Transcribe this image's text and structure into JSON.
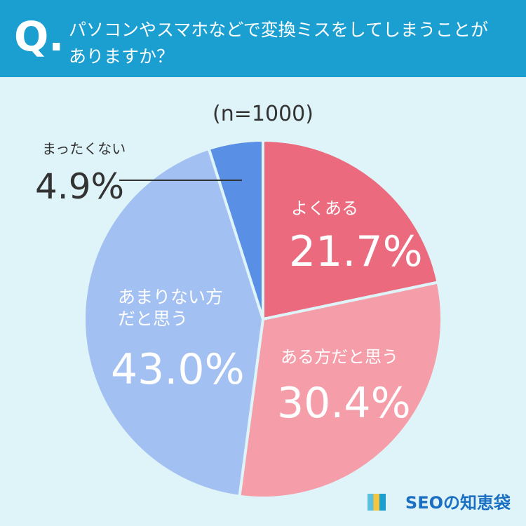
{
  "header": {
    "mark": "Q."
  },
  "chart_data": {
    "type": "pie",
    "title": "パソコンやスマホなどで変換ミスをしてしまうことがありますか？",
    "subtitle": "(n=1000)",
    "categories": [
      "よくある",
      "ある方だと思う",
      "あまりない方だと思う",
      "まったくない"
    ],
    "values": [
      21.7,
      30.4,
      43.0,
      4.9
    ],
    "value_labels": [
      "21.7%",
      "30.4%",
      "43.0%",
      "4.9%"
    ],
    "colors": [
      "#ec6a7e",
      "#f59ea9",
      "#a3c0f2",
      "#5a8fe6"
    ]
  },
  "footer": {
    "logo": "SEOの知恵袋"
  }
}
